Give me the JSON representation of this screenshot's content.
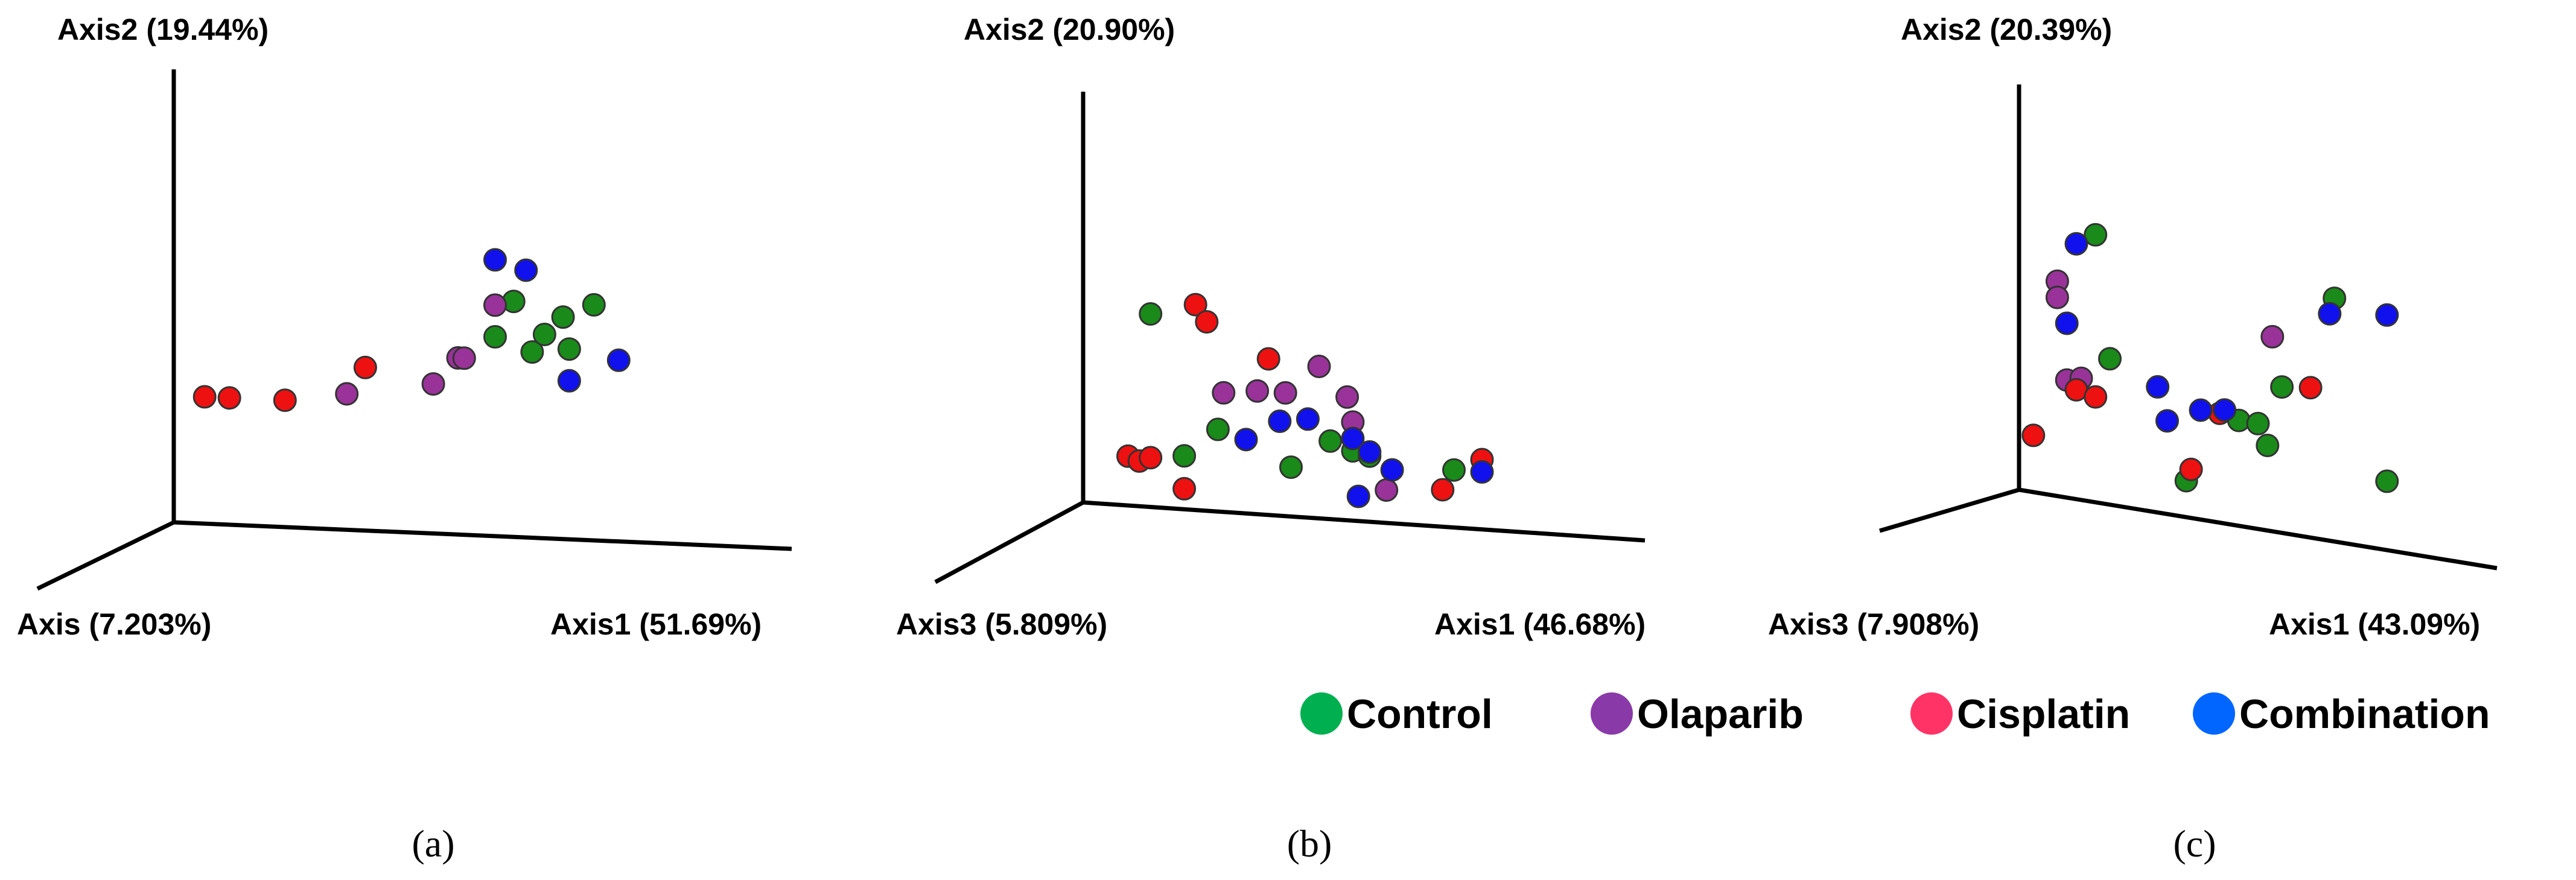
{
  "colors": {
    "control_point": "#1a8a1a",
    "olaparib_point": "#993399",
    "cisplatin_point": "#ee1111",
    "combination_point": "#1111ee",
    "control_legend": "#00b050",
    "olaparib_legend": "#8a3aa8",
    "cisplatin_legend": "#ff3366",
    "combination_legend": "#0066ff"
  },
  "legend": {
    "items": [
      {
        "key": "control",
        "label": "Control"
      },
      {
        "key": "olaparib",
        "label": "Olaparib"
      },
      {
        "key": "cisplatin",
        "label": "Cisplatin"
      },
      {
        "key": "combination",
        "label": "Combination"
      }
    ]
  },
  "chart_data": [
    {
      "type": "scatter",
      "panel_label": "(a)",
      "axis_labels": {
        "axis2": "Axis2 (19.44%)",
        "axis3": "Axis (7.203%)",
        "axis1": "Axis1 (51.69%)"
      },
      "series": [
        {
          "name": "Control",
          "key": "control",
          "points": [
            [
              0.52,
              0.44
            ],
            [
              0.55,
              0.52
            ],
            [
              0.58,
              0.41
            ],
            [
              0.63,
              0.49
            ],
            [
              0.6,
              0.45
            ],
            [
              0.64,
              0.42
            ],
            [
              0.68,
              0.52
            ]
          ]
        },
        {
          "name": "Olaparib",
          "key": "olaparib",
          "points": [
            [
              0.28,
              0.3
            ],
            [
              0.42,
              0.33
            ],
            [
              0.46,
              0.39
            ],
            [
              0.47,
              0.39
            ],
            [
              0.52,
              0.51
            ]
          ]
        },
        {
          "name": "Cisplatin",
          "key": "cisplatin",
          "points": [
            [
              0.05,
              0.28
            ],
            [
              0.09,
              0.28
            ],
            [
              0.18,
              0.28
            ],
            [
              0.31,
              0.36
            ]
          ]
        },
        {
          "name": "Combination",
          "key": "combination",
          "points": [
            [
              0.52,
              0.61
            ],
            [
              0.57,
              0.59
            ],
            [
              0.64,
              0.35
            ],
            [
              0.72,
              0.4
            ]
          ]
        }
      ]
    },
    {
      "type": "scatter",
      "panel_label": "(b)",
      "axis_labels": {
        "axis2": "Axis2 (20.90%)",
        "axis3": "Axis3 (5.809%)",
        "axis1": "Axis1 (46.68%)"
      },
      "series": [
        {
          "name": "Control",
          "key": "control",
          "points": [
            [
              0.12,
              0.47
            ],
            [
              0.18,
              0.13
            ],
            [
              0.24,
              0.2
            ],
            [
              0.37,
              0.12
            ],
            [
              0.44,
              0.19
            ],
            [
              0.48,
              0.17
            ],
            [
              0.51,
              0.16
            ],
            [
              0.66,
              0.14
            ]
          ]
        },
        {
          "name": "Olaparib",
          "key": "olaparib",
          "points": [
            [
              0.25,
              0.29
            ],
            [
              0.31,
              0.3
            ],
            [
              0.36,
              0.3
            ],
            [
              0.42,
              0.37
            ],
            [
              0.47,
              0.3
            ],
            [
              0.48,
              0.24
            ],
            [
              0.54,
              0.08
            ]
          ]
        },
        {
          "name": "Cisplatin",
          "key": "cisplatin",
          "points": [
            [
              0.08,
              0.12
            ],
            [
              0.1,
              0.11
            ],
            [
              0.12,
              0.12
            ],
            [
              0.18,
              0.05
            ],
            [
              0.2,
              0.5
            ],
            [
              0.22,
              0.46
            ],
            [
              0.33,
              0.38
            ],
            [
              0.64,
              0.09
            ],
            [
              0.71,
              0.17
            ]
          ]
        },
        {
          "name": "Combination",
          "key": "combination",
          "points": [
            [
              0.29,
              0.18
            ],
            [
              0.35,
              0.23
            ],
            [
              0.4,
              0.24
            ],
            [
              0.48,
              0.2
            ],
            [
              0.51,
              0.17
            ],
            [
              0.55,
              0.13
            ],
            [
              0.71,
              0.14
            ],
            [
              0.49,
              0.06
            ]
          ]
        }
      ]
    },
    {
      "type": "scatter",
      "panel_label": "(c)",
      "axis_labels": {
        "axis2": "Axis2 (20.39%)",
        "axis3": "Axis3 (7.908%)",
        "axis1": "Axis1 (43.09%)"
      },
      "series": [
        {
          "name": "Control",
          "key": "control",
          "points": [
            [
              0.16,
              0.66
            ],
            [
              0.19,
              0.36
            ],
            [
              0.35,
              0.09
            ],
            [
              0.46,
              0.26
            ],
            [
              0.5,
              0.26
            ],
            [
              0.52,
              0.21
            ],
            [
              0.55,
              0.36
            ],
            [
              0.77,
              0.17
            ],
            [
              0.66,
              0.6
            ]
          ]
        },
        {
          "name": "Olaparib",
          "key": "olaparib",
          "points": [
            [
              0.08,
              0.53
            ],
            [
              0.08,
              0.49
            ],
            [
              0.1,
              0.29
            ],
            [
              0.13,
              0.3
            ],
            [
              0.53,
              0.48
            ]
          ]
        },
        {
          "name": "Cisplatin",
          "key": "cisplatin",
          "points": [
            [
              0.03,
              0.14
            ],
            [
              0.12,
              0.27
            ],
            [
              0.16,
              0.26
            ],
            [
              0.36,
              0.12
            ],
            [
              0.42,
              0.27
            ],
            [
              0.61,
              0.37
            ]
          ]
        },
        {
          "name": "Combination",
          "key": "combination",
          "points": [
            [
              0.1,
              0.43
            ],
            [
              0.12,
              0.63
            ],
            [
              0.29,
              0.31
            ],
            [
              0.31,
              0.23
            ],
            [
              0.38,
              0.27
            ],
            [
              0.43,
              0.28
            ],
            [
              0.65,
              0.56
            ],
            [
              0.77,
              0.58
            ]
          ]
        }
      ]
    }
  ]
}
